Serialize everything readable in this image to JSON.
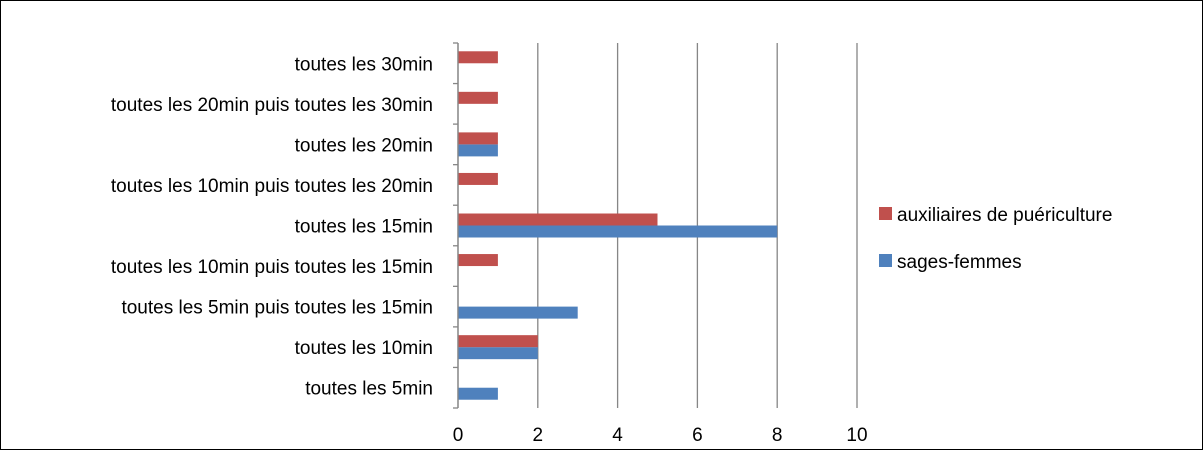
{
  "chart_data": {
    "type": "bar",
    "orientation": "horizontal",
    "categories": [
      "toutes les 5min",
      "toutes les 10min",
      "toutes les 5min puis toutes les 15min",
      "toutes les 10min puis toutes les 15min",
      "toutes les 15min",
      "toutes les 10min puis toutes les 20min",
      "toutes les 20min",
      "toutes les 20min puis toutes les 30min",
      "toutes les 30min"
    ],
    "series": [
      {
        "name": "sages-femmes",
        "color": "#4f81bd",
        "values": [
          1,
          2,
          3,
          0,
          8,
          0,
          1,
          0,
          0
        ]
      },
      {
        "name": "auxiliaires de puériculture",
        "color": "#c0504d",
        "values": [
          0,
          2,
          0,
          1,
          5,
          1,
          1,
          1,
          1
        ]
      }
    ],
    "xlim": [
      0,
      10
    ],
    "xticks": [
      "0",
      "2",
      "4",
      "6",
      "8",
      "10"
    ],
    "grid": "vertical",
    "legend": "right",
    "legend_order": [
      "auxiliaires de puériculture",
      "sages-femmes"
    ],
    "gridline_color": "#868686",
    "axis_color": "#868686"
  }
}
